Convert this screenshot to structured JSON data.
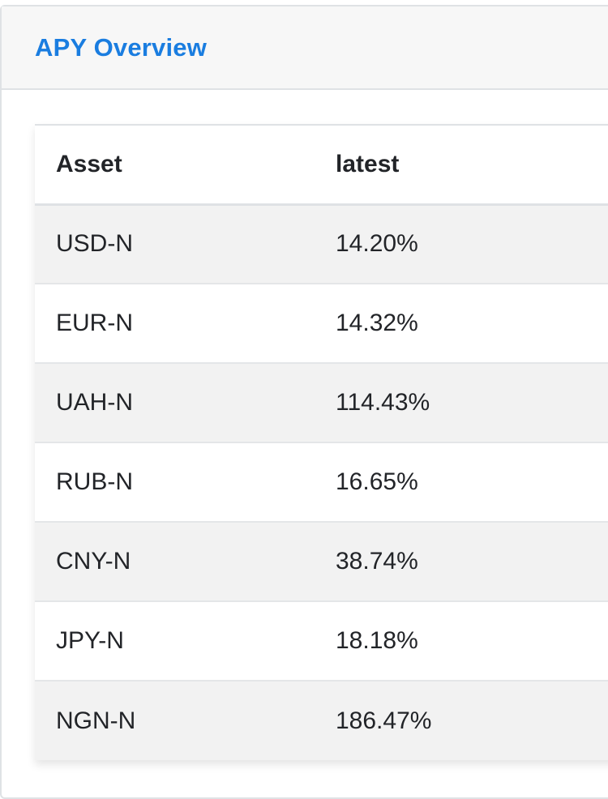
{
  "card": {
    "title": "APY Overview"
  },
  "table": {
    "headers": {
      "asset": "Asset",
      "latest": "latest"
    },
    "rows": [
      {
        "asset": "USD-N",
        "latest": "14.20%"
      },
      {
        "asset": "EUR-N",
        "latest": "14.32%"
      },
      {
        "asset": "UAH-N",
        "latest": "114.43%"
      },
      {
        "asset": "RUB-N",
        "latest": "16.65%"
      },
      {
        "asset": "CNY-N",
        "latest": "38.74%"
      },
      {
        "asset": "JPY-N",
        "latest": "18.18%"
      },
      {
        "asset": "NGN-N",
        "latest": "186.47%"
      }
    ]
  },
  "colors": {
    "title": "#1a7de0",
    "header_bg": "#f7f7f7",
    "stripe_bg": "#f2f2f2",
    "text": "#222428"
  }
}
